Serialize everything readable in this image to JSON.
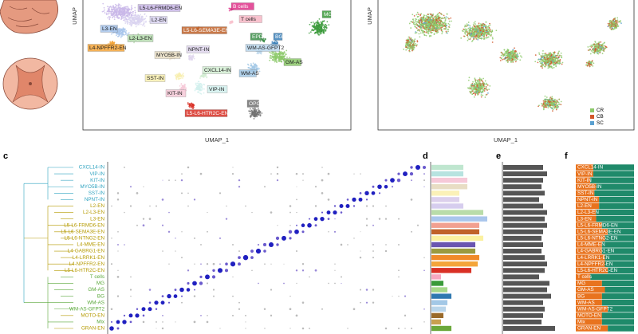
{
  "panel_labels": [
    "c",
    "d",
    "e",
    "f"
  ],
  "umap_a": {
    "x_label": "UMAP_1",
    "y_label": "UMAP",
    "clusters": [
      "L5-L6-FRMD6-EN",
      "L2-EN",
      "L3-EN",
      "L2-L3-EN",
      "L4-NPFFR2-EN",
      "MYO5B-IN",
      "NPNT-IN",
      "SST-IN",
      "KIT-IN",
      "CXCL14-IN",
      "VIP-IN",
      "L5-L6-HTR2C-EN",
      "OPC",
      "B cells",
      "T cells",
      "L5-L6-SEMA3E-EN",
      "MG",
      "EPD",
      "BG",
      "WM-AS-GFPT2",
      "GM-AS",
      "WM-AS"
    ],
    "cluster_colors": [
      "#c9b8e8",
      "#d9d3f0",
      "#a9c6ec",
      "#b7dcb0",
      "#f4a53a",
      "#e8ddc4",
      "#e0d6ee",
      "#f8efb0",
      "#f6c9d8",
      "#d3eed3",
      "#d2f0ee",
      "#d93025",
      "#707070",
      "#e0338a",
      "#f7b8c6",
      "#c0622a",
      "#3a9a3a",
      "#3d8f4a",
      "#3a7fb8",
      "#b9d5ea",
      "#8cc96a",
      "#a3c8e6"
    ]
  },
  "umap_b": {
    "x_label": "UMAP_1",
    "y_label": "UMAP"
  },
  "legend": {
    "names": [
      "CR",
      "CB",
      "SC"
    ],
    "colors": [
      "#8cc96a",
      "#d2572a",
      "#5aa0d0"
    ]
  },
  "rows": [
    "CXCL14-IN",
    "VIP-IN",
    "KIT-IN",
    "MYO5B-IN",
    "SST-IN",
    "NPNT-IN",
    "L2-EN",
    "L2-L3-EN",
    "L3-EN",
    "L5-L6-FRMD6-EN",
    "L5-L6-SEMA3E-EN",
    "L5-L6-NTNG2-EN",
    "L4-MME-EN",
    "L4-GABRG1-EN",
    "L4-LRRK1-EN",
    "L4-NPFFR2-EN",
    "L5-L6-HTR2C-EN",
    "T cells",
    "MG",
    "GM-AS",
    "BG",
    "WM-AS",
    "WM-AS-GFPT2",
    "MOTO-EN",
    "Mix",
    "GRAN-EN"
  ],
  "row_colors": [
    "#2fa3c0",
    "#2fa3c0",
    "#2fa3c0",
    "#2fa3c0",
    "#2fa3c0",
    "#2fa3c0",
    "#b59a00",
    "#b59a00",
    "#b59a00",
    "#b59a00",
    "#b59a00",
    "#b59a00",
    "#b59a00",
    "#b59a00",
    "#b59a00",
    "#b59a00",
    "#b59a00",
    "#5aa83a",
    "#5aa83a",
    "#5aa83a",
    "#5aa83a",
    "#5aa83a",
    "#5aa83a",
    "#b59a00",
    "#5aa83a",
    "#b59a00"
  ],
  "d": {
    "values": [
      40,
      40,
      45,
      45,
      35,
      35,
      40,
      65,
      70,
      60,
      60,
      65,
      55,
      55,
      60,
      58,
      50,
      12,
      15,
      20,
      25,
      20,
      18,
      15,
      12,
      25
    ],
    "colors": [
      "#bfe6cf",
      "#b7e3e0",
      "#f6c9d8",
      "#e8ddc4",
      "#fbf1b8",
      "#dcd0ec",
      "#d6cdee",
      "#b9dca9",
      "#a9c6ec",
      "#f2a090",
      "#c0622a",
      "#fbf1a0",
      "#6a55b0",
      "#9a9a40",
      "#f08a2a",
      "#f4a53a",
      "#d93025",
      "#f7a8c0",
      "#3a9a3a",
      "#a6d88a",
      "#2f78b0",
      "#a3c8e6",
      "#b9d5ea",
      "#9a6a2a",
      "#c8a050",
      "#6aa83a"
    ]
  },
  "e": {
    "values": [
      50,
      55,
      50,
      48,
      52,
      45,
      50,
      55,
      52,
      55,
      50,
      48,
      50,
      48,
      52,
      55,
      52,
      45,
      58,
      55,
      60,
      50,
      52,
      50,
      48,
      65
    ],
    "color": "#555555"
  },
  "f": {
    "series": [
      {
        "color": "#e8731e",
        "values": [
          30,
          30,
          25,
          35,
          32,
          40,
          40,
          35,
          35,
          45,
          55,
          50,
          45,
          45,
          50,
          50,
          55,
          25,
          45,
          50,
          45,
          45,
          55,
          45,
          45,
          55
        ]
      },
      {
        "color": "#1f8a6a",
        "values": [
          70,
          70,
          75,
          65,
          68,
          60,
          60,
          65,
          65,
          55,
          45,
          50,
          55,
          55,
          50,
          50,
          45,
          75,
          55,
          50,
          55,
          55,
          45,
          55,
          55,
          45
        ]
      }
    ]
  }
}
